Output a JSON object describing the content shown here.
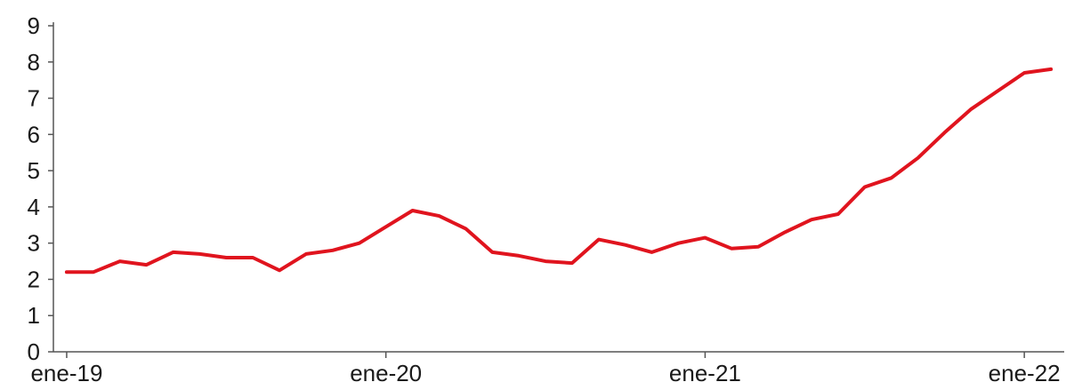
{
  "chart_data": {
    "type": "line",
    "title": "",
    "xlabel": "",
    "ylabel": "",
    "ylim": [
      0,
      9
    ],
    "yticks": [
      "0",
      "1",
      "2",
      "3",
      "4",
      "5",
      "6",
      "7",
      "8",
      "9"
    ],
    "x_tick_labels": [
      "ene-19",
      "ene-20",
      "ene-21",
      "ene-22"
    ],
    "x_tick_months": [
      0,
      12,
      24,
      36
    ],
    "x_range_months": [
      -0.5,
      37.5
    ],
    "grid": false,
    "legend": "none",
    "colors": {
      "series": "#e0141e",
      "axis": "#555555",
      "text": "#1a1a1a"
    },
    "series": [
      {
        "x": [
          "ene-19",
          "feb-19",
          "mar-19",
          "abr-19",
          "may-19",
          "jun-19",
          "jul-19",
          "ago-19",
          "sep-19",
          "oct-19",
          "nov-19",
          "dic-19",
          "ene-20",
          "feb-20",
          "mar-20",
          "abr-20",
          "may-20",
          "jun-20",
          "jul-20",
          "ago-20",
          "sep-20",
          "oct-20",
          "nov-20",
          "dic-20",
          "ene-21",
          "feb-21",
          "mar-21",
          "abr-21",
          "may-21",
          "jun-21",
          "jul-21",
          "ago-21",
          "sep-21",
          "oct-21",
          "nov-21",
          "dic-21",
          "ene-22",
          "feb-22"
        ],
        "values": [
          2.2,
          2.2,
          2.5,
          2.4,
          2.75,
          2.7,
          2.6,
          2.6,
          2.25,
          2.7,
          2.8,
          3.0,
          3.45,
          3.9,
          3.75,
          3.4,
          2.75,
          2.65,
          2.5,
          2.45,
          3.1,
          2.95,
          2.75,
          3.0,
          3.15,
          2.85,
          2.9,
          3.3,
          3.65,
          3.8,
          4.55,
          4.8,
          5.35,
          6.05,
          6.7,
          7.2,
          7.7,
          7.8
        ]
      }
    ]
  }
}
